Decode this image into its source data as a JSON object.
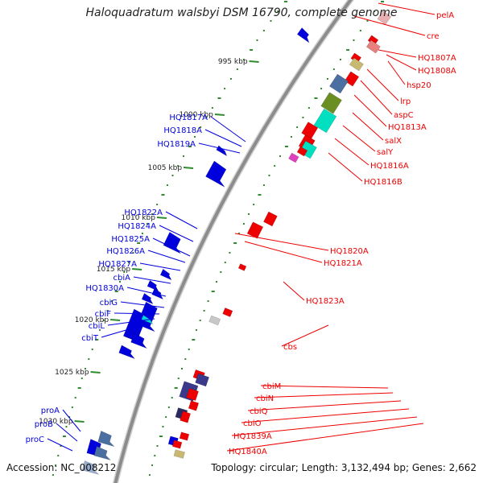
{
  "title": "Haloquadratum walsbyi DSM 16790, complete genome",
  "accession": "Accession: NC_008212",
  "topology": "Topology: circular; Length: 3,132,494 bp; Genes: 2,662",
  "colors": {
    "forward": "#0000dd",
    "reverse": "#ee0000",
    "backbone": "#8c8c8c",
    "tick": "#2e8b2e",
    "other_genes": [
      "#00e0c0",
      "#6b8e23",
      "#e040c0",
      "#c8b870",
      "#4a6fa0",
      "#3a3a8a"
    ]
  },
  "ruler": {
    "unit": "kbp",
    "labels": [
      "995 kbp",
      "1000 kbp",
      "1005 kbp",
      "1010 kbp",
      "1015 kbp",
      "1020 kbp",
      "1025 kbp",
      "1030 kbp"
    ]
  },
  "forward_genes": [
    "HQ1817A",
    "HQ1818A",
    "HQ1819A",
    "HQ1822A",
    "HQ1824A",
    "HQ1825A",
    "HQ1826A",
    "HQ1827A",
    "cbiA",
    "HQ1830A",
    "cbiG",
    "cbiF",
    "cbiL",
    "cbiT",
    "proA",
    "proB",
    "proC"
  ],
  "reverse_genes": [
    "pelA",
    "cre",
    "HQ1807A",
    "HQ1808A",
    "hsp20",
    "lrp",
    "aspC",
    "HQ1813A",
    "salX",
    "salY",
    "HQ1816A",
    "HQ1816B",
    "HQ1820A",
    "HQ1821A",
    "HQ1823A",
    "cbs",
    "cbiM",
    "cbiN",
    "cbiQ",
    "cbiO",
    "HQ1839A",
    "HQ1840A"
  ]
}
